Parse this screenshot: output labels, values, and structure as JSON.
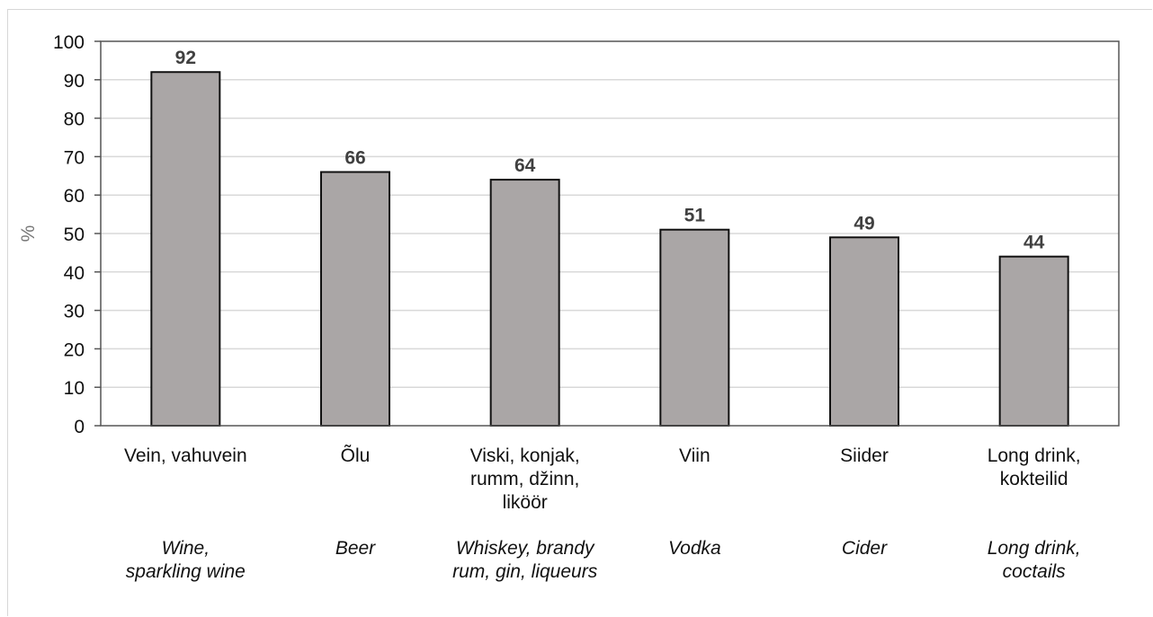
{
  "chart_data": {
    "type": "bar",
    "ylabel": "%",
    "ylim": [
      0,
      100
    ],
    "yticks": [
      "0",
      "10",
      "20",
      "30",
      "40",
      "50",
      "60",
      "70",
      "80",
      "90",
      "100"
    ],
    "grid": true,
    "bar_color": "#aaa6a6",
    "categories": [
      {
        "label": [
          "Vein, vahuvein"
        ],
        "english": [
          "Wine,",
          "sparkling wine"
        ]
      },
      {
        "label": [
          "Õlu"
        ],
        "english": [
          "Beer"
        ]
      },
      {
        "label": [
          "Viski, konjak,",
          "rumm, džinn,",
          "liköör"
        ],
        "english": [
          "Whiskey, brandy",
          "rum, gin, liqueurs"
        ]
      },
      {
        "label": [
          "Viin"
        ],
        "english": [
          "Vodka"
        ]
      },
      {
        "label": [
          "Siider"
        ],
        "english": [
          "Cider"
        ]
      },
      {
        "label": [
          "Long drink,",
          "kokteilid"
        ],
        "english": [
          "Long drink,",
          "coctails"
        ]
      }
    ],
    "values": [
      92,
      66,
      64,
      51,
      49,
      44
    ]
  }
}
